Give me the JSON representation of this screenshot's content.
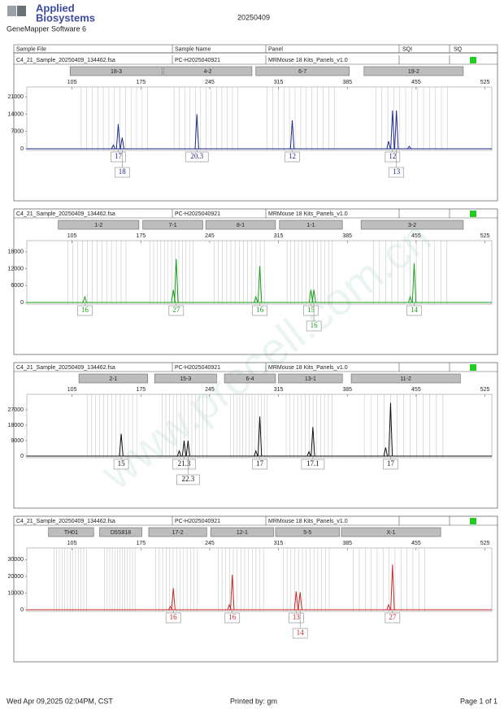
{
  "header": {
    "brand": [
      "Applied",
      "Biosystems"
    ],
    "software": "GeneMapper Software 6",
    "date": "20250409",
    "watermark": "www.procell.com.cn"
  },
  "columns": [
    "Sample File",
    "Sample Name",
    "Panel",
    "SQI",
    "SQ"
  ],
  "chart_data": [
    {
      "type": "peaks",
      "sample_file": "C4_21_Sample_20250409_134462.fsa",
      "sample_name": "PC-H2025040921",
      "panel": "MRMouse 18 Kits_Panels_v1.0",
      "markers": [
        {
          "name": "18-3",
          "range": [
            103,
            197
          ]
        },
        {
          "name": "4-2",
          "range": [
            198,
            288
          ]
        },
        {
          "name": "6-7",
          "range": [
            292,
            387
          ]
        },
        {
          "name": "19-2",
          "range": [
            402,
            503
          ]
        }
      ],
      "xlim": [
        59,
        532
      ],
      "xticks": [
        105,
        175,
        245,
        315,
        385,
        455,
        525
      ],
      "ylim": [
        0,
        25000
      ],
      "yticks": [
        0,
        7000,
        14000,
        21000
      ],
      "color": "#1f2a8a",
      "x": [
        147,
        152,
        156,
        232,
        329,
        427,
        431,
        435,
        448
      ],
      "values": [
        1500,
        10000,
        4500,
        14000,
        11500,
        3000,
        15500,
        15500,
        1000
      ],
      "alleles": [
        null,
        "17",
        "18",
        "20.3",
        "12",
        null,
        "12",
        "13",
        null
      ]
    },
    {
      "type": "peaks",
      "sample_file": "C4_21_Sample_20250409_134462.fsa",
      "sample_name": "PC-H2025040921",
      "panel": "MRMouse 18 Kits_Panels_v1.0",
      "markers": [
        {
          "name": "1-2",
          "range": [
            91,
            173
          ]
        },
        {
          "name": "7-1",
          "range": [
            177,
            238
          ]
        },
        {
          "name": "8-1",
          "range": [
            241,
            312
          ]
        },
        {
          "name": "1-1",
          "range": [
            316,
            380
          ]
        },
        {
          "name": "3-2",
          "range": [
            399,
            503
          ]
        }
      ],
      "xlim": [
        59,
        532
      ],
      "xticks": [
        105,
        175,
        245,
        315,
        385,
        455,
        525
      ],
      "ylim": [
        0,
        22000
      ],
      "yticks": [
        0,
        6000,
        12000,
        18000
      ],
      "color": "#1a9e1a",
      "x": [
        118,
        208,
        211,
        292,
        296,
        348,
        351,
        449,
        453
      ],
      "values": [
        2000,
        4500,
        15500,
        2000,
        13000,
        4500,
        4500,
        2000,
        14000
      ],
      "alleles": [
        "16",
        null,
        "27",
        null,
        "16",
        "15",
        "16",
        null,
        "14"
      ]
    },
    {
      "type": "peaks",
      "sample_file": "C4_21_Sample_20250409_134462.fsa",
      "sample_name": "PC-H2025040921",
      "panel": "MRMouse 18 Kits_Panels_v1.0",
      "markers": [
        {
          "name": "2-1",
          "range": [
            112,
            182
          ]
        },
        {
          "name": "15-3",
          "range": [
            189,
            252
          ]
        },
        {
          "name": "6-4",
          "range": [
            260,
            312
          ]
        },
        {
          "name": "13-1",
          "range": [
            315,
            380
          ]
        },
        {
          "name": "11-2",
          "range": [
            389,
            500
          ]
        }
      ],
      "xlim": [
        59,
        532
      ],
      "xticks": [
        105,
        175,
        245,
        315,
        385,
        455,
        525
      ],
      "ylim": [
        0,
        36000
      ],
      "yticks": [
        0,
        9000,
        18000,
        27000
      ],
      "color": "#111111",
      "x": [
        155,
        214,
        219,
        223,
        292,
        296,
        346,
        350,
        424,
        429
      ],
      "values": [
        13000,
        3000,
        9000,
        9000,
        3000,
        23000,
        2500,
        17000,
        5000,
        31000
      ],
      "alleles": [
        "15",
        null,
        "21.3",
        "22.3",
        null,
        "17",
        null,
        "17.1",
        null,
        "17"
      ]
    },
    {
      "type": "peaks",
      "sample_file": "C4_21_Sample_20250409_134462.fsa",
      "sample_name": "PC-H2025040921",
      "panel": "MRMouse 18 Kits_Panels_v1.0",
      "markers": [
        {
          "name": "TH01",
          "range": [
            81,
            127
          ]
        },
        {
          "name": "D5S818",
          "range": [
            133,
            176
          ]
        },
        {
          "name": "17-2",
          "range": [
            183,
            242
          ]
        },
        {
          "name": "12-1",
          "range": [
            246,
            310
          ]
        },
        {
          "name": "5-5",
          "range": [
            312,
            377
          ]
        },
        {
          "name": "X-1",
          "range": [
            379,
            480
          ]
        }
      ],
      "xlim": [
        59,
        532
      ],
      "xticks": [
        105,
        175,
        245,
        315,
        385,
        455,
        525
      ],
      "ylim": [
        0,
        37000
      ],
      "yticks": [
        0,
        10000,
        20000,
        30000
      ],
      "color": "#c62828",
      "x": [
        205,
        208,
        265,
        268,
        333,
        337,
        427,
        431
      ],
      "values": [
        2000,
        13000,
        3000,
        21000,
        11000,
        10500,
        3000,
        27000
      ],
      "alleles": [
        null,
        "16",
        null,
        "16",
        "13",
        "14",
        null,
        "27"
      ]
    }
  ],
  "footer": {
    "printed_at": "Wed Apr 09,2025 02:04PM, CST",
    "printed_by": "Printed by: gm",
    "page": "Page 1 of 1"
  }
}
